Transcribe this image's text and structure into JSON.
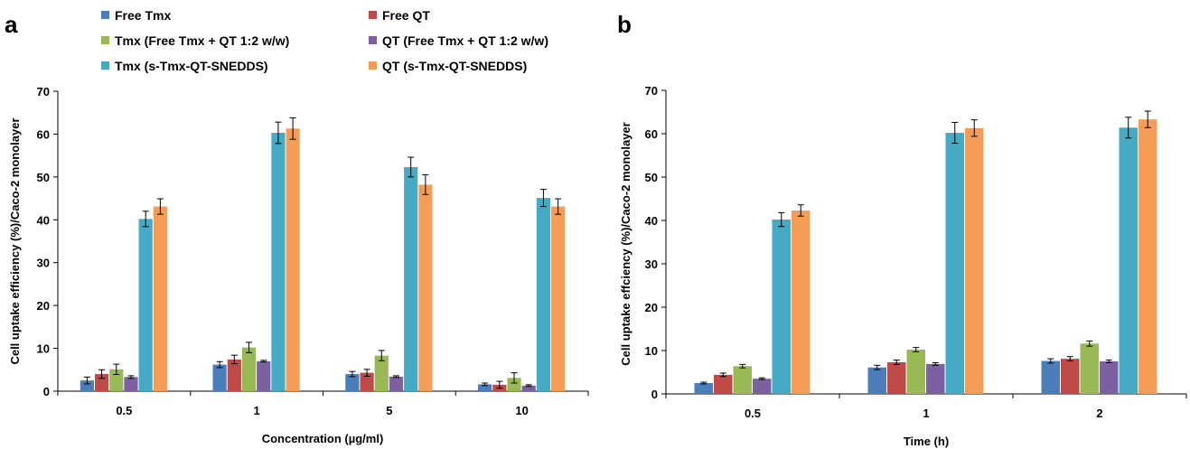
{
  "legend": [
    {
      "name": "Free Tmx",
      "color": "#4a7ebb"
    },
    {
      "name": "Free QT",
      "color": "#be4b48"
    },
    {
      "name": "Tmx (Free Tmx + QT 1:2 w/w)",
      "color": "#98b954"
    },
    {
      "name": "QT (Free Tmx + QT 1:2 w/w)",
      "color": "#7d60a0"
    },
    {
      "name": "Tmx (s-Tmx-QT-SNEDDS)",
      "color": "#46aac5"
    },
    {
      "name": "QT (s-Tmx-QT-SNEDDS)",
      "color": "#f59d56"
    }
  ],
  "chart_data": [
    {
      "panel": "a",
      "type": "bar",
      "xlabel": "Concentration (µg/ml)",
      "ylabel": "Cell uptake efficiency (%)/Caco-2 monolayer",
      "ylim": [
        0,
        70
      ],
      "yticks": [
        0,
        10,
        20,
        30,
        40,
        50,
        60,
        70
      ],
      "categories": [
        "0.5",
        "1",
        "5",
        "10"
      ],
      "series": [
        {
          "name": "Free Tmx",
          "values": [
            2.5,
            6.2,
            4.0,
            1.6
          ],
          "errors": [
            0.8,
            0.7,
            0.6,
            0.3
          ]
        },
        {
          "name": "Free QT",
          "values": [
            4.0,
            7.4,
            4.3,
            1.5
          ],
          "errors": [
            1.0,
            1.0,
            0.8,
            0.8
          ]
        },
        {
          "name": "Tmx (Free Tmx + QT 1:2 w/w)",
          "values": [
            5.1,
            10.2,
            8.3,
            3.1
          ],
          "errors": [
            1.2,
            1.2,
            1.2,
            1.2
          ]
        },
        {
          "name": "QT (Free Tmx + QT 1:2 w/w)",
          "values": [
            3.3,
            7.0,
            3.4,
            1.3
          ],
          "errors": [
            0.3,
            0.2,
            0.2,
            0.2
          ]
        },
        {
          "name": "Tmx (s-Tmx-QT-SNEDDS)",
          "values": [
            40.2,
            60.3,
            52.3,
            45.1
          ],
          "errors": [
            1.8,
            2.5,
            2.3,
            2.0
          ]
        },
        {
          "name": "QT (s-Tmx-QT-SNEDDS)",
          "values": [
            43.1,
            61.3,
            48.2,
            43.1
          ],
          "errors": [
            1.8,
            2.5,
            2.3,
            1.8
          ]
        }
      ]
    },
    {
      "panel": "b",
      "type": "bar",
      "xlabel": "Time (h)",
      "ylabel": "Cell uptake effciency (%)/Caco-2 monolayer",
      "ylim": [
        0,
        70
      ],
      "yticks": [
        0,
        10,
        20,
        30,
        40,
        50,
        60,
        70
      ],
      "categories": [
        "0.5",
        "1",
        "2"
      ],
      "series": [
        {
          "name": "Free Tmx",
          "values": [
            2.5,
            6.1,
            7.6
          ],
          "errors": [
            0.2,
            0.5,
            0.5
          ]
        },
        {
          "name": "Free QT",
          "values": [
            4.4,
            7.3,
            8.1
          ],
          "errors": [
            0.4,
            0.5,
            0.5
          ]
        },
        {
          "name": "Tmx (Free Tmx + QT 1:2 w/w)",
          "values": [
            6.4,
            10.2,
            11.6
          ],
          "errors": [
            0.4,
            0.5,
            0.6
          ]
        },
        {
          "name": "QT (Free Tmx + QT 1:2 w/w)",
          "values": [
            3.5,
            6.9,
            7.5
          ],
          "errors": [
            0.2,
            0.3,
            0.3
          ]
        },
        {
          "name": "Tmx (s-Tmx-QT-SNEDDS)",
          "values": [
            40.2,
            60.2,
            61.4
          ],
          "errors": [
            1.6,
            2.4,
            2.4
          ]
        },
        {
          "name": "QT (s-Tmx-QT-SNEDDS)",
          "values": [
            42.3,
            61.3,
            63.3
          ],
          "errors": [
            1.3,
            1.9,
            1.9
          ]
        }
      ]
    }
  ]
}
